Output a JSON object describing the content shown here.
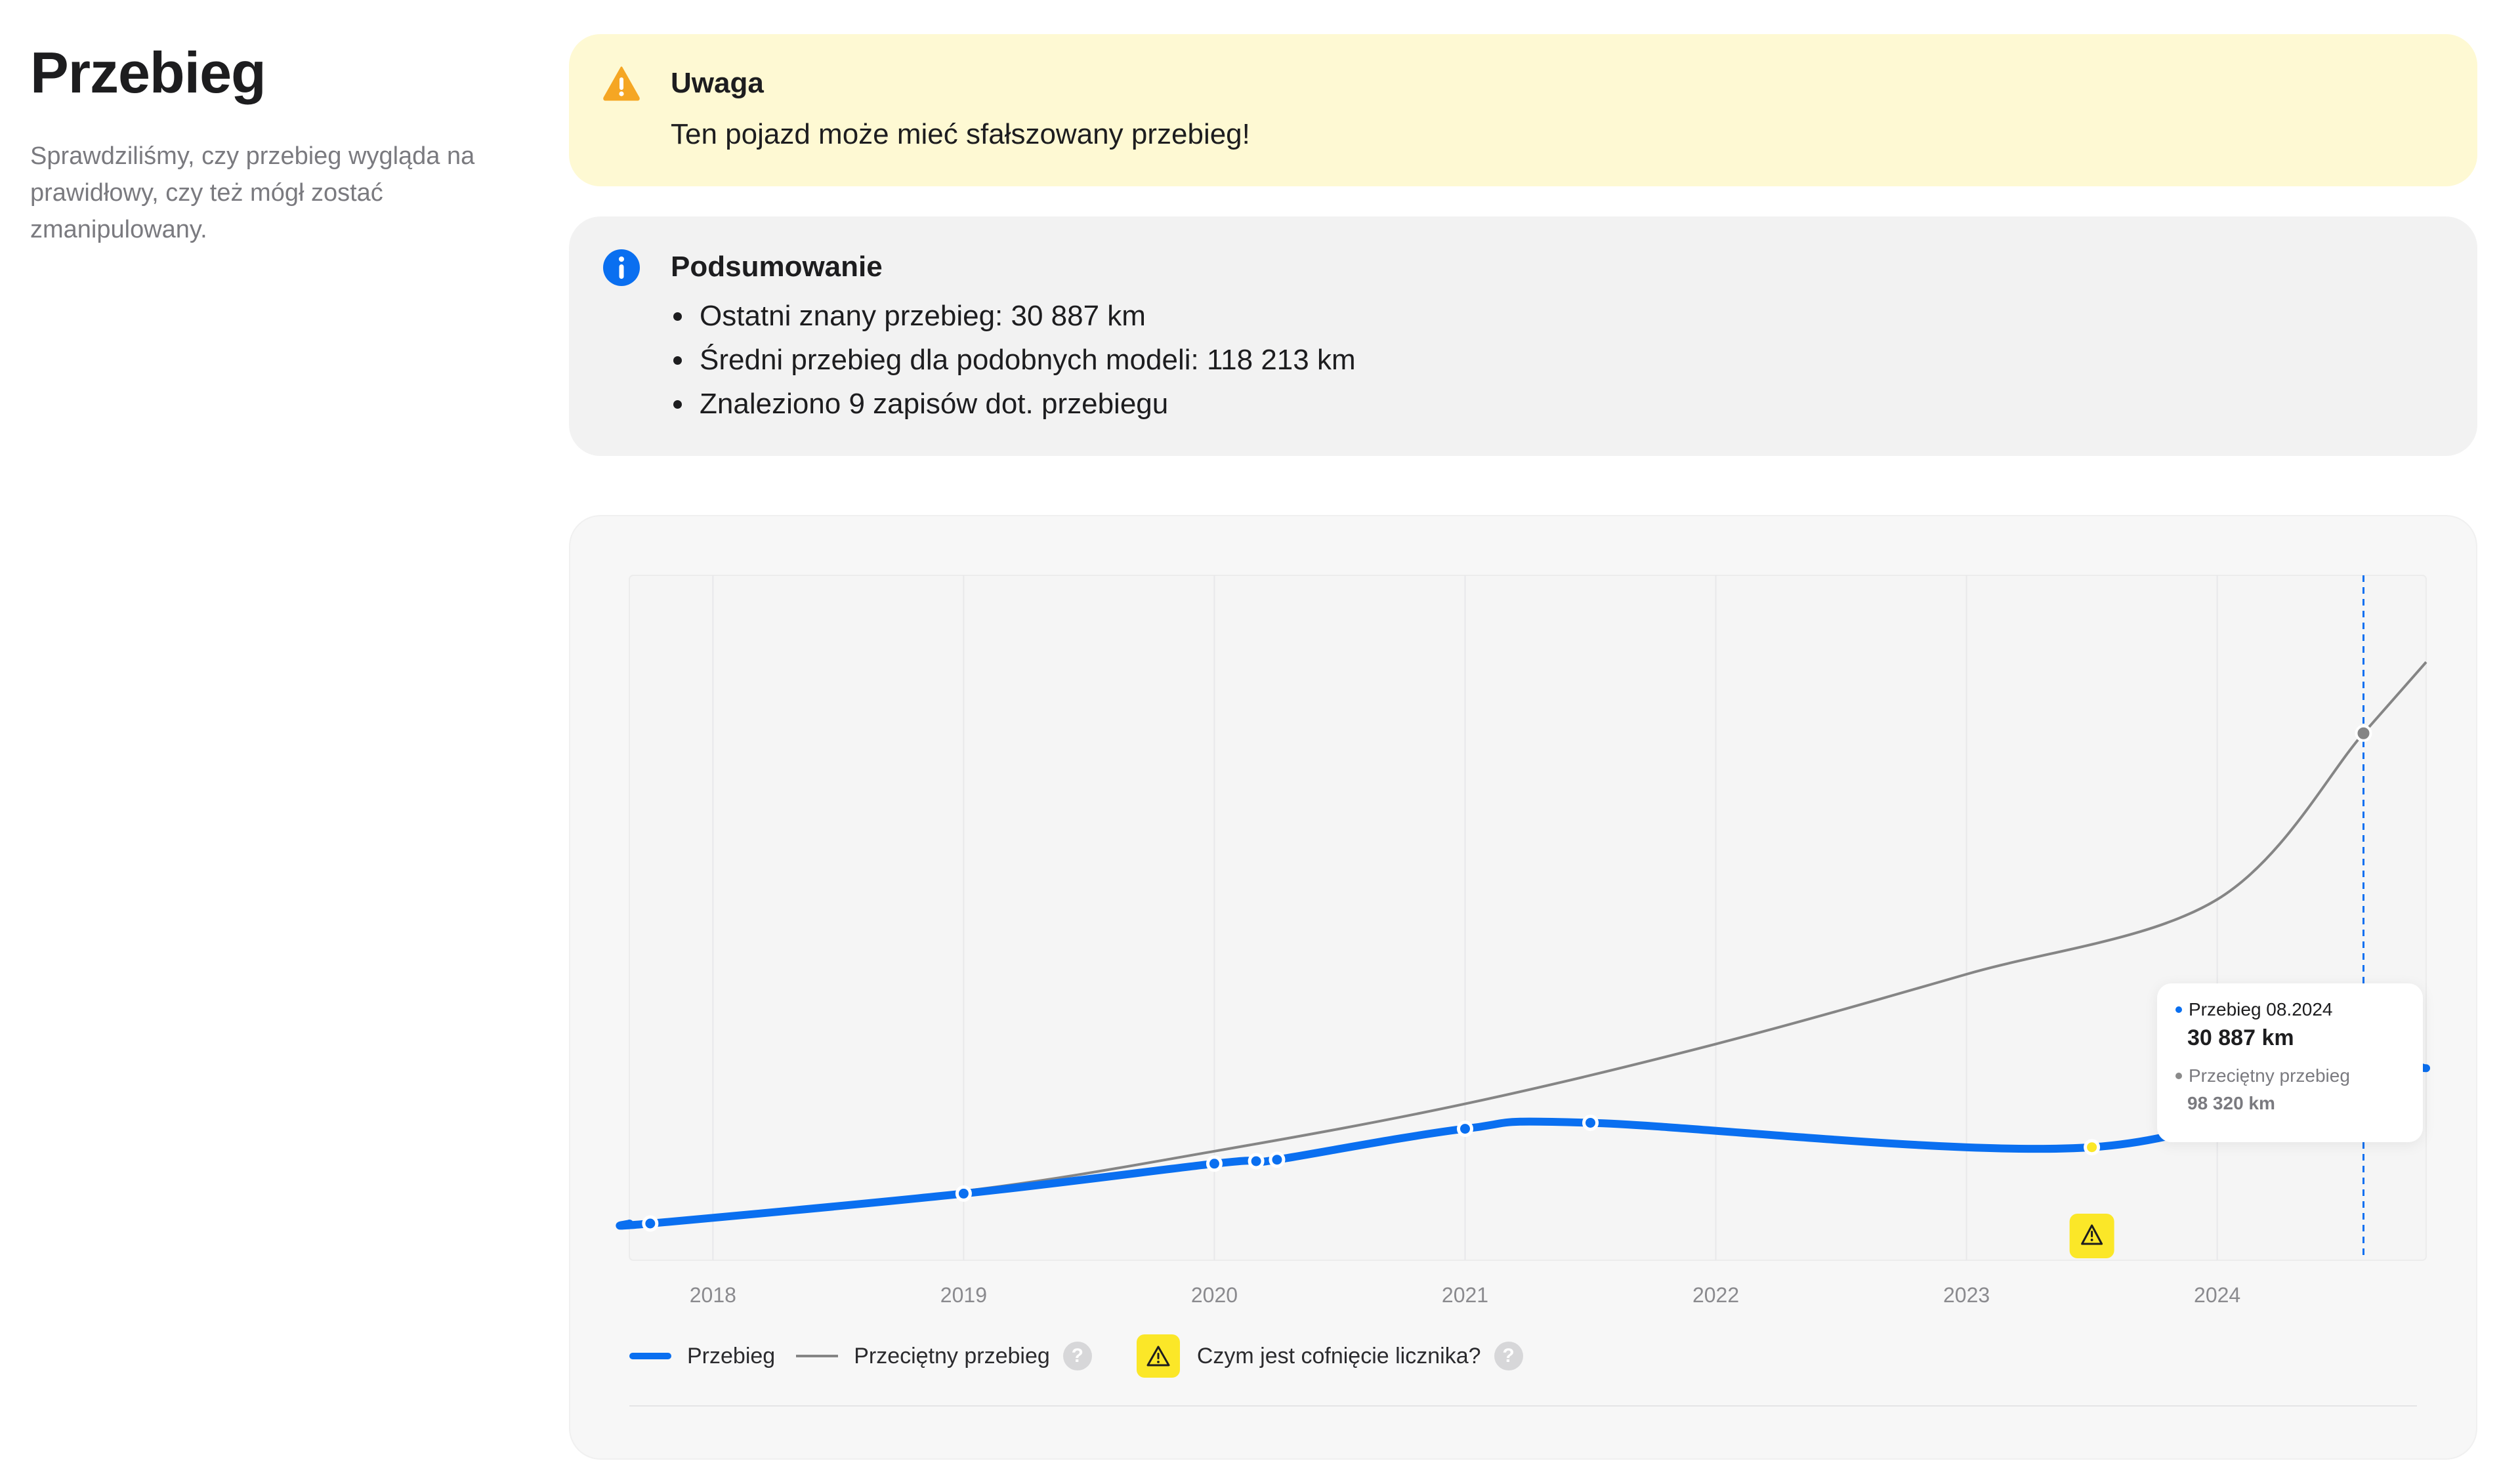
{
  "header": {
    "title": "Przebieg",
    "subtitle": "Sprawdziliśmy, czy przebieg wygląda na prawidłowy, czy też mógł zostać zmanipulowany."
  },
  "warning": {
    "icon": "warning-triangle-icon",
    "title": "Uwaga",
    "text": "Ten pojazd może mieć sfałszowany przebieg!",
    "background": "#fef9d3",
    "icon_color": "#f5a623"
  },
  "summary": {
    "icon": "info-icon",
    "title": "Podsumowanie",
    "items": [
      "Ostatni znany przebieg: 30 887 km",
      "Średni przebieg dla podobnych modeli: 118 213 km",
      "Znaleziono 9 zapisów dot. przebiegu"
    ],
    "icon_color": "#0a6ff0"
  },
  "chart_data": {
    "type": "line",
    "x_ticks": [
      "2018",
      "2019",
      "2020",
      "2021",
      "2022",
      "2023",
      "2024"
    ],
    "xlim": [
      "2017-09",
      "2024-11"
    ],
    "ylim": [
      0,
      130000
    ],
    "grid": "vertical",
    "series": [
      {
        "name": "Przebieg",
        "color": "#0a6ff0",
        "x": [
          "2017-10",
          "2019-01",
          "2020-01",
          "2020-03",
          "2020-04",
          "2021-01",
          "2021-07",
          "2023-07",
          "2024-08"
        ],
        "values": [
          0,
          6000,
          12000,
          12500,
          12800,
          19000,
          20200,
          15300,
          30887
        ]
      },
      {
        "name": "Przeciętny przebieg",
        "color": "#858585",
        "x": [
          "2017-09",
          "2019-01",
          "2020-01",
          "2021-01",
          "2022-01",
          "2023-01",
          "2024-01",
          "2024-08"
        ],
        "values": [
          0,
          6500,
          14500,
          24000,
          36000,
          50000,
          65000,
          98320
        ]
      }
    ],
    "flagged_point": {
      "x": "2023-07",
      "note": "cofnięcie licznika",
      "color": "#fbe728"
    },
    "highlight": {
      "x": "2024-08",
      "dashed_line_color": "#0a6ff0"
    },
    "tooltip": {
      "series_label": "Przebieg 08.2024",
      "value": "30 887 km",
      "avg_label": "Przeciętny przebieg",
      "avg_value": "98 320 km"
    },
    "legend": {
      "items": [
        "Przebieg",
        "Przeciętny przebieg"
      ],
      "rollback_label": "Czym jest cofnięcie licznika?",
      "help_symbol": "?",
      "placement": "bottom-left"
    }
  }
}
